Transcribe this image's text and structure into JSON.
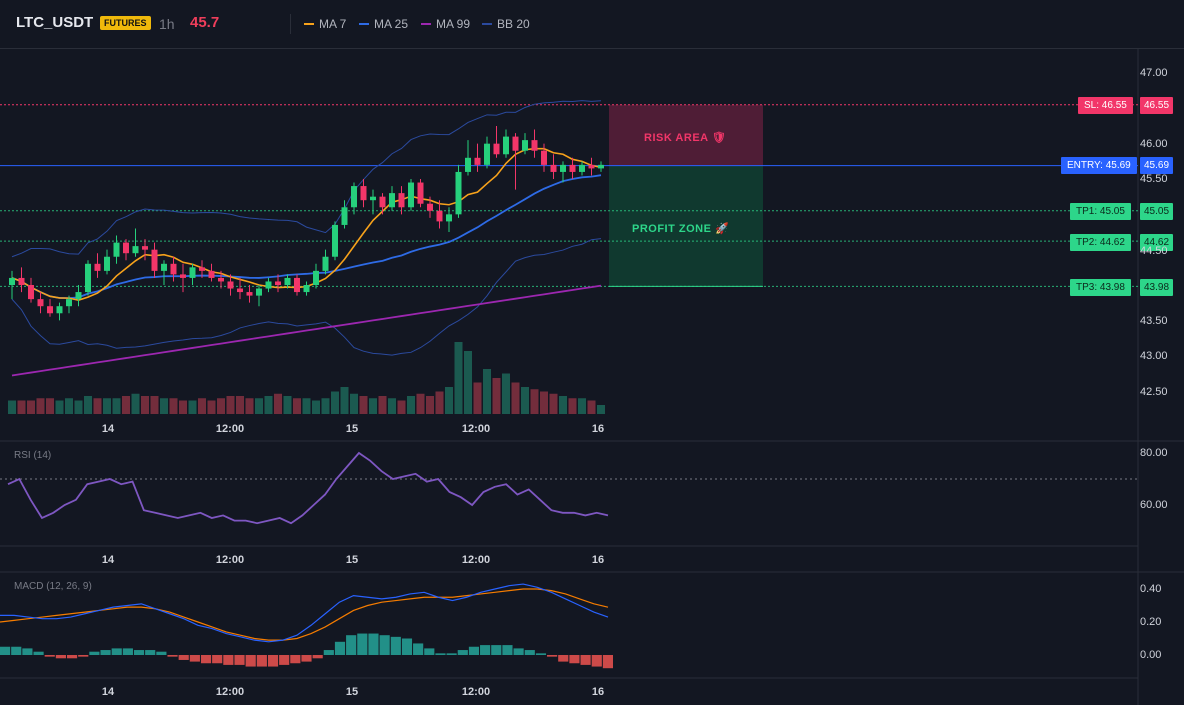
{
  "header": {
    "symbol": "LTC_USDT",
    "badge": "FUTURES",
    "timeframe": "1h",
    "last_price": "45.7",
    "legend": [
      {
        "label": "MA 7",
        "color": "#f7a21b"
      },
      {
        "label": "MA 25",
        "color": "#2e6be6"
      },
      {
        "label": "MA 99",
        "color": "#9c27b0"
      },
      {
        "label": "BB 20",
        "color": "#2b4a9e"
      }
    ]
  },
  "levels": {
    "sl": {
      "label": "SL: 46.55",
      "value": "46.55",
      "price": 46.55,
      "color": "#f23669"
    },
    "entry": {
      "label": "ENTRY: 45.69",
      "value": "45.69",
      "price": 45.69,
      "color": "#2962ff"
    },
    "tp1": {
      "label": "TP1: 45.05",
      "value": "45.05",
      "price": 45.05,
      "color": "#2dd68a"
    },
    "tp2": {
      "label": "TP2: 44.62",
      "value": "44.62",
      "price": 44.62,
      "color": "#2dd68a"
    },
    "tp3": {
      "label": "TP3: 43.98",
      "value": "43.98",
      "price": 43.98,
      "color": "#2dd68a"
    }
  },
  "zones": {
    "risk_label": "RISK AREA 🛡",
    "profit_label": "PROFIT ZONE 🚀"
  },
  "price_axis": [
    "47.00",
    "46.00",
    "45.50",
    "44.50",
    "43.50",
    "43.00",
    "42.50"
  ],
  "time_axis": [
    "14",
    "12:00",
    "15",
    "12:00",
    "16"
  ],
  "rsi": {
    "title": "RSI (14)",
    "axis": [
      "80.00",
      "60.00"
    ]
  },
  "macd": {
    "title": "MACD (12, 26, 9)",
    "axis": [
      "0.40",
      "0.20",
      "0.00"
    ]
  },
  "chart_data": {
    "type": "candlestick",
    "symbol": "LTC_USDT",
    "candles": [
      [
        44.0,
        44.2,
        43.8,
        44.1
      ],
      [
        44.1,
        44.25,
        43.9,
        44.0
      ],
      [
        44.0,
        44.1,
        43.75,
        43.8
      ],
      [
        43.8,
        43.9,
        43.6,
        43.7
      ],
      [
        43.7,
        43.8,
        43.55,
        43.6
      ],
      [
        43.6,
        43.75,
        43.5,
        43.7
      ],
      [
        43.7,
        43.85,
        43.6,
        43.8
      ],
      [
        43.8,
        44.0,
        43.7,
        43.9
      ],
      [
        43.9,
        44.35,
        43.85,
        44.3
      ],
      [
        44.3,
        44.45,
        44.1,
        44.2
      ],
      [
        44.2,
        44.5,
        44.15,
        44.4
      ],
      [
        44.4,
        44.7,
        44.3,
        44.6
      ],
      [
        44.6,
        44.65,
        44.35,
        44.45
      ],
      [
        44.45,
        44.8,
        44.4,
        44.55
      ],
      [
        44.55,
        44.65,
        44.35,
        44.5
      ],
      [
        44.5,
        44.6,
        44.1,
        44.2
      ],
      [
        44.2,
        44.35,
        44.0,
        44.3
      ],
      [
        44.3,
        44.4,
        44.05,
        44.15
      ],
      [
        44.15,
        44.3,
        43.9,
        44.1
      ],
      [
        44.1,
        44.3,
        44.0,
        44.25
      ],
      [
        44.25,
        44.35,
        44.1,
        44.2
      ],
      [
        44.2,
        44.3,
        44.05,
        44.1
      ],
      [
        44.1,
        44.2,
        43.95,
        44.05
      ],
      [
        44.05,
        44.15,
        43.85,
        43.95
      ],
      [
        43.95,
        44.1,
        43.8,
        43.9
      ],
      [
        43.9,
        44.0,
        43.75,
        43.85
      ],
      [
        43.85,
        44.0,
        43.7,
        43.95
      ],
      [
        43.95,
        44.1,
        43.9,
        44.05
      ],
      [
        44.05,
        44.15,
        43.9,
        44.0
      ],
      [
        44.0,
        44.15,
        43.95,
        44.1
      ],
      [
        44.1,
        44.15,
        43.85,
        43.9
      ],
      [
        43.9,
        44.05,
        43.85,
        44.0
      ],
      [
        44.0,
        44.3,
        43.95,
        44.2
      ],
      [
        44.2,
        44.5,
        44.15,
        44.4
      ],
      [
        44.4,
        44.9,
        44.35,
        44.85
      ],
      [
        44.85,
        45.2,
        44.8,
        45.1
      ],
      [
        45.1,
        45.45,
        45.0,
        45.4
      ],
      [
        45.4,
        45.5,
        45.1,
        45.2
      ],
      [
        45.2,
        45.35,
        45.0,
        45.25
      ],
      [
        45.25,
        45.3,
        45.0,
        45.1
      ],
      [
        45.1,
        45.4,
        45.05,
        45.3
      ],
      [
        45.3,
        45.4,
        45.0,
        45.1
      ],
      [
        45.1,
        45.5,
        45.05,
        45.45
      ],
      [
        45.45,
        45.5,
        45.1,
        45.15
      ],
      [
        45.15,
        45.25,
        44.95,
        45.05
      ],
      [
        45.05,
        45.2,
        44.8,
        44.9
      ],
      [
        44.9,
        45.1,
        44.75,
        45.0
      ],
      [
        45.0,
        45.7,
        44.95,
        45.6
      ],
      [
        45.6,
        46.05,
        45.55,
        45.8
      ],
      [
        45.8,
        46.0,
        45.6,
        45.7
      ],
      [
        45.7,
        46.1,
        45.65,
        46.0
      ],
      [
        46.0,
        46.25,
        45.8,
        45.85
      ],
      [
        45.85,
        46.2,
        45.8,
        46.1
      ],
      [
        46.1,
        46.15,
        45.35,
        45.9
      ],
      [
        45.9,
        46.15,
        45.85,
        46.05
      ],
      [
        46.05,
        46.2,
        45.8,
        45.9
      ],
      [
        45.9,
        46.0,
        45.6,
        45.7
      ],
      [
        45.7,
        45.85,
        45.5,
        45.6
      ],
      [
        45.6,
        45.75,
        45.45,
        45.7
      ],
      [
        45.7,
        45.8,
        45.5,
        45.6
      ],
      [
        45.6,
        45.75,
        45.55,
        45.7
      ],
      [
        45.7,
        45.8,
        45.55,
        45.65
      ],
      [
        45.65,
        45.75,
        45.6,
        45.7
      ]
    ],
    "volume": [
      6,
      6,
      6,
      7,
      7,
      6,
      7,
      6,
      8,
      7,
      7,
      7,
      8,
      9,
      8,
      8,
      7,
      7,
      6,
      6,
      7,
      6,
      7,
      8,
      8,
      7,
      7,
      8,
      9,
      8,
      7,
      7,
      6,
      7,
      10,
      12,
      9,
      8,
      7,
      8,
      7,
      6,
      8,
      9,
      8,
      10,
      12,
      32,
      28,
      14,
      20,
      16,
      18,
      14,
      12,
      11,
      10,
      9,
      8,
      7,
      7,
      6,
      4
    ],
    "ma_levels": {
      "ma7": "orange",
      "ma25": "blue",
      "ma99": "purple",
      "bb20": "navy"
    },
    "rsi": [
      68,
      70,
      62,
      55,
      57,
      60,
      62,
      68,
      69,
      70,
      68,
      69,
      58,
      57,
      56,
      55,
      56,
      57,
      55,
      56,
      54,
      54,
      53,
      54,
      55,
      53,
      56,
      60,
      64,
      70,
      75,
      80,
      77,
      73,
      70,
      71,
      72,
      69,
      70,
      65,
      63,
      60,
      65,
      67,
      68,
      64,
      66,
      62,
      58,
      57,
      57,
      56,
      57,
      56
    ],
    "macd_line": [
      0.24,
      0.24,
      0.23,
      0.22,
      0.22,
      0.23,
      0.25,
      0.27,
      0.29,
      0.3,
      0.31,
      0.28,
      0.25,
      0.22,
      0.18,
      0.16,
      0.13,
      0.11,
      0.09,
      0.08,
      0.09,
      0.12,
      0.18,
      0.25,
      0.32,
      0.36,
      0.35,
      0.34,
      0.35,
      0.37,
      0.38,
      0.35,
      0.33,
      0.35,
      0.38,
      0.4,
      0.42,
      0.43,
      0.41,
      0.38,
      0.34,
      0.3,
      0.26,
      0.23
    ],
    "signal_line": [
      0.2,
      0.21,
      0.22,
      0.23,
      0.24,
      0.25,
      0.26,
      0.27,
      0.28,
      0.29,
      0.29,
      0.28,
      0.26,
      0.23,
      0.2,
      0.17,
      0.14,
      0.12,
      0.1,
      0.09,
      0.09,
      0.1,
      0.13,
      0.17,
      0.22,
      0.27,
      0.3,
      0.32,
      0.33,
      0.34,
      0.35,
      0.35,
      0.35,
      0.36,
      0.37,
      0.38,
      0.39,
      0.4,
      0.4,
      0.39,
      0.37,
      0.34,
      0.31,
      0.29
    ],
    "histogram": [
      0.05,
      0.05,
      0.04,
      0.02,
      -0.01,
      -0.02,
      -0.02,
      -0.01,
      0.02,
      0.03,
      0.04,
      0.04,
      0.03,
      0.03,
      0.02,
      -0.01,
      -0.03,
      -0.04,
      -0.05,
      -0.05,
      -0.06,
      -0.06,
      -0.07,
      -0.07,
      -0.07,
      -0.06,
      -0.05,
      -0.04,
      -0.02,
      0.03,
      0.08,
      0.12,
      0.13,
      0.13,
      0.12,
      0.11,
      0.1,
      0.07,
      0.04,
      0.01,
      0.01,
      0.03,
      0.05,
      0.06,
      0.06,
      0.06,
      0.04,
      0.03,
      0.01,
      -0.01,
      -0.04,
      -0.05,
      -0.06,
      -0.07,
      -0.08
    ]
  }
}
